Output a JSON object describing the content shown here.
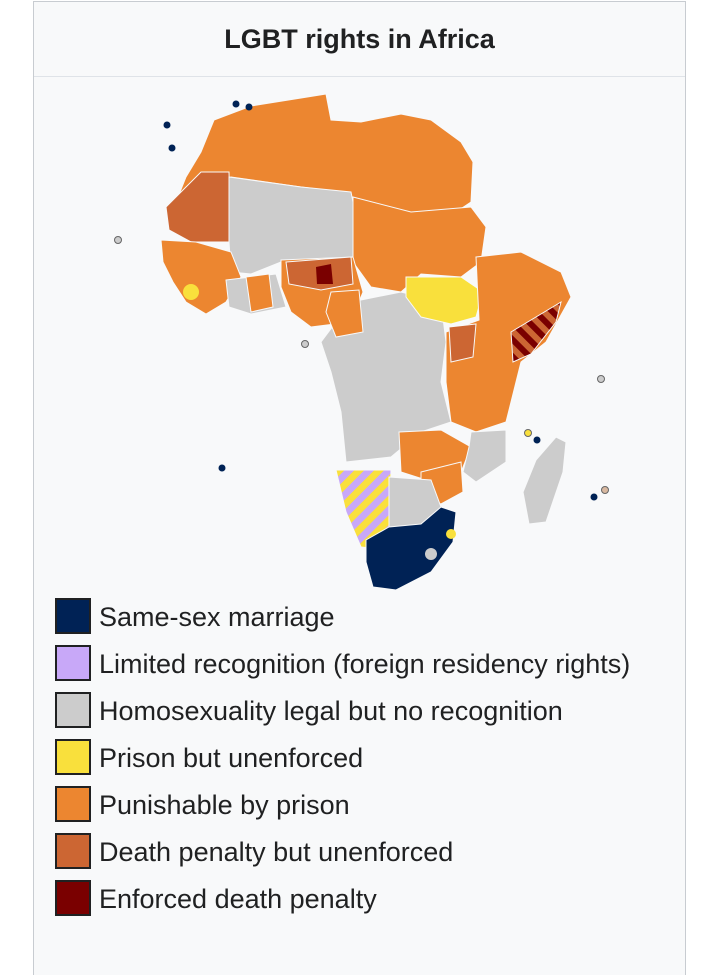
{
  "caption": "LGBT rights in Africa",
  "legend": [
    {
      "label": "Same-sex marriage",
      "color": "#002255"
    },
    {
      "label": "Limited recognition (foreign residency rights)",
      "color": "#c8a8f8"
    },
    {
      "label": "Homosexuality legal but no recognition",
      "color": "#cccccc"
    },
    {
      "label": "Prison but unenforced",
      "color": "#f9e03c"
    },
    {
      "label": "Punishable by prison",
      "color": "#ec8630"
    },
    {
      "label": "Death penalty but unenforced",
      "color": "#cc6633"
    },
    {
      "label": "Enforced death penalty",
      "color": "#7a0000"
    }
  ]
}
